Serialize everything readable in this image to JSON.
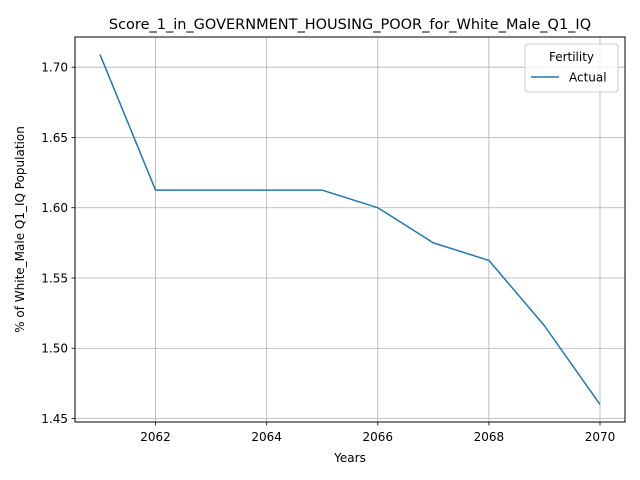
{
  "chart_data": {
    "type": "line",
    "title": "Score_1_in_GOVERNMENT_HOUSING_POOR_for_White_Male_Q1_IQ",
    "xlabel": "Years",
    "ylabel": "% of White_Male Q1_IQ Population",
    "x": [
      2061,
      2062,
      2063,
      2064,
      2065,
      2066,
      2067,
      2068,
      2069,
      2070
    ],
    "series": [
      {
        "name": "Actual",
        "color": "#1f77b4",
        "values": [
          1.709,
          1.6125,
          1.6125,
          1.6125,
          1.6125,
          1.6,
          1.575,
          1.5625,
          1.516,
          1.46
        ]
      }
    ],
    "xlim": [
      2060.55,
      2070.45
    ],
    "ylim": [
      1.4475,
      1.7215
    ],
    "xticks": [
      2062,
      2064,
      2066,
      2068,
      2070
    ],
    "yticks": [
      1.45,
      1.5,
      1.55,
      1.6,
      1.65,
      1.7
    ],
    "xtick_labels": [
      "2062",
      "2064",
      "2066",
      "2068",
      "2070"
    ],
    "ytick_labels": [
      "1.45",
      "1.50",
      "1.55",
      "1.60",
      "1.65",
      "1.70"
    ],
    "grid": true,
    "legend": {
      "title": "Fertility",
      "placement": "top-right"
    }
  }
}
